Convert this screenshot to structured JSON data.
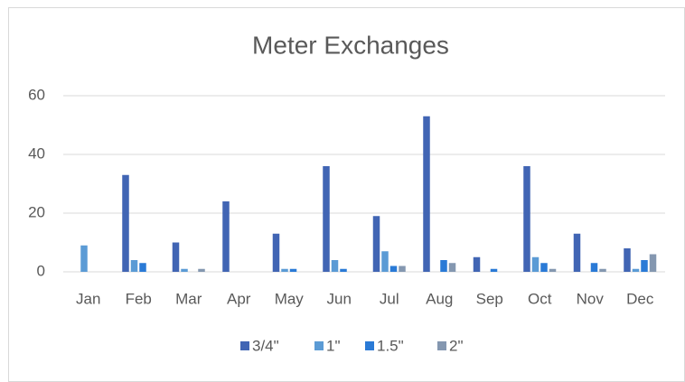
{
  "chart_data": {
    "type": "bar",
    "title": "Meter Exchanges",
    "categories": [
      "Jan",
      "Feb",
      "Mar",
      "Apr",
      "May",
      "Jun",
      "Jul",
      "Aug",
      "Sep",
      "Oct",
      "Nov",
      "Dec"
    ],
    "series": [
      {
        "name": "3/4\"",
        "color": "#4165b4",
        "values": [
          0,
          33,
          10,
          24,
          13,
          36,
          19,
          53,
          5,
          36,
          13,
          8
        ]
      },
      {
        "name": "1\"",
        "color": "#5b9bd5",
        "values": [
          9,
          4,
          1,
          0,
          1,
          4,
          7,
          0,
          0,
          5,
          0,
          1
        ]
      },
      {
        "name": "1.5\"",
        "color": "#2a7ad6",
        "values": [
          0,
          3,
          0,
          0,
          1,
          1,
          2,
          4,
          1,
          3,
          3,
          4
        ]
      },
      {
        "name": "2\"",
        "color": "#8497b0",
        "values": [
          0,
          0,
          1,
          0,
          0,
          0,
          2,
          3,
          0,
          1,
          1,
          6
        ]
      }
    ],
    "ylim": [
      0,
      60
    ],
    "yticks": [
      0,
      20,
      40,
      60
    ],
    "grid": true,
    "legend": "bottom"
  }
}
